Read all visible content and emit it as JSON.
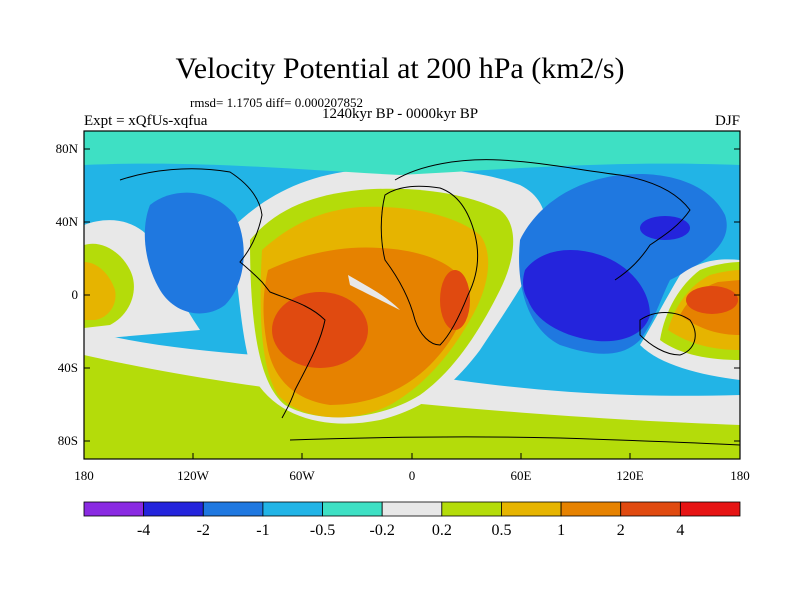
{
  "title": "Velocity Potential at 200 hPa (km2/s)",
  "stats": "rmsd= 1.1705 diff= 0.000207852",
  "period": "1240kyr BP - 0000kyr BP",
  "experiment": "Expt = xQfUs-xqfua",
  "season": "DJF",
  "lat_labels": [
    "80N",
    "40N",
    "0",
    "40S",
    "80S"
  ],
  "lon_labels": [
    "180",
    "120W",
    "60W",
    "0",
    "60E",
    "120E",
    "180"
  ],
  "colorbar": {
    "colors": [
      "#8a2be2",
      "#2424dc",
      "#1f78e0",
      "#22b4e6",
      "#3ee0c4",
      "#e8e8e8",
      "#b4dc0a",
      "#e6b400",
      "#e68200",
      "#e04a10",
      "#e61414"
    ],
    "labels": [
      "-4",
      "-2",
      "-1",
      "-0.5",
      "-0.2",
      "0.2",
      "0.5",
      "1",
      "2",
      "4"
    ]
  }
}
